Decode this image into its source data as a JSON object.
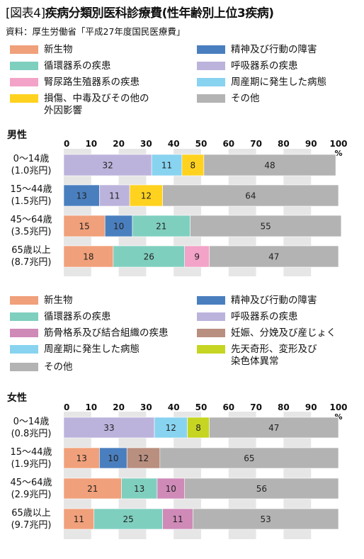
{
  "title_prefix": "[図表4]",
  "title": "疾病分類別医科診療費(性年齢別上位3疾病)",
  "source": "資料：厚生労働省「平成27年度国民医療費」",
  "colors": {
    "neoplasm": "#f0a07a",
    "mental": "#4a7fbf",
    "circulatory": "#7fcfbf",
    "respiratory": "#bcb3dc",
    "genitourinary": "#f3a3c8",
    "perinatal": "#88d3f0",
    "injury": "#ffd21f",
    "other": "#b3b3b3",
    "musculoskeletal": "#cf8ab8",
    "pregnancy": "#b98f80",
    "congenital": "#c5d522",
    "band": "#e6e6e6"
  },
  "legend_male": [
    {
      "label": "新生物",
      "color_key": "neoplasm"
    },
    {
      "label": "精神及び行動の障害",
      "color_key": "mental"
    },
    {
      "label": "循環器系の疾患",
      "color_key": "circulatory"
    },
    {
      "label": "呼吸器系の疾患",
      "color_key": "respiratory"
    },
    {
      "label": "腎尿路生殖器系の疾患",
      "color_key": "genitourinary"
    },
    {
      "label": "周産期に発生した病態",
      "color_key": "perinatal"
    },
    {
      "label": "損傷、中毒及びその他の\n外因影響",
      "color_key": "injury"
    },
    {
      "label": "その他",
      "color_key": "other"
    }
  ],
  "legend_female": [
    {
      "label": "新生物",
      "color_key": "neoplasm"
    },
    {
      "label": "精神及び行動の障害",
      "color_key": "mental"
    },
    {
      "label": "循環器系の疾患",
      "color_key": "circulatory"
    },
    {
      "label": "呼吸器系の疾患",
      "color_key": "respiratory"
    },
    {
      "label": "筋骨格系及び結合組織の疾患",
      "color_key": "musculoskeletal"
    },
    {
      "label": "妊娠、分娩及び産じょく",
      "color_key": "pregnancy"
    },
    {
      "label": "周産期に発生した病態",
      "color_key": "perinatal"
    },
    {
      "label": "先天奇形、変形及び\n染色体異常",
      "color_key": "congenital"
    },
    {
      "label": "その他",
      "color_key": "other"
    }
  ],
  "chart_data": [
    {
      "type": "bar",
      "orientation": "horizontal",
      "stacked": true,
      "title": "男性",
      "x_ticks": [
        "0",
        "10",
        "20",
        "30",
        "40",
        "50",
        "60",
        "70",
        "80",
        "90",
        "100"
      ],
      "unit": "%",
      "xlim": [
        0,
        100
      ],
      "rows": [
        {
          "label": "0〜14歳",
          "sub": "(1.0兆円)",
          "segments": [
            {
              "key": "respiratory",
              "value": 32
            },
            {
              "key": "perinatal",
              "value": 11
            },
            {
              "key": "injury",
              "value": 8
            },
            {
              "key": "other",
              "value": 48
            }
          ]
        },
        {
          "label": "15〜44歳",
          "sub": "(1.5兆円)",
          "segments": [
            {
              "key": "mental",
              "value": 13
            },
            {
              "key": "respiratory",
              "value": 11
            },
            {
              "key": "injury",
              "value": 12
            },
            {
              "key": "other",
              "value": 64
            }
          ]
        },
        {
          "label": "45〜64歳",
          "sub": "(3.5兆円)",
          "segments": [
            {
              "key": "neoplasm",
              "value": 15
            },
            {
              "key": "mental",
              "value": 10
            },
            {
              "key": "circulatory",
              "value": 21
            },
            {
              "key": "other",
              "value": 55
            }
          ]
        },
        {
          "label": "65歳以上",
          "sub": "(8.7兆円)",
          "segments": [
            {
              "key": "neoplasm",
              "value": 18
            },
            {
              "key": "circulatory",
              "value": 26
            },
            {
              "key": "genitourinary",
              "value": 9
            },
            {
              "key": "other",
              "value": 47
            }
          ]
        }
      ]
    },
    {
      "type": "bar",
      "orientation": "horizontal",
      "stacked": true,
      "title": "女性",
      "x_ticks": [
        "0",
        "10",
        "20",
        "30",
        "40",
        "50",
        "60",
        "70",
        "80",
        "90",
        "100"
      ],
      "unit": "%",
      "xlim": [
        0,
        100
      ],
      "rows": [
        {
          "label": "0〜14歳",
          "sub": "(0.8兆円)",
          "segments": [
            {
              "key": "respiratory",
              "value": 33
            },
            {
              "key": "perinatal",
              "value": 12
            },
            {
              "key": "congenital",
              "value": 8
            },
            {
              "key": "other",
              "value": 47
            }
          ]
        },
        {
          "label": "15〜44歳",
          "sub": "(1.9兆円)",
          "segments": [
            {
              "key": "neoplasm",
              "value": 13
            },
            {
              "key": "mental",
              "value": 10
            },
            {
              "key": "pregnancy",
              "value": 12
            },
            {
              "key": "other",
              "value": 65
            }
          ]
        },
        {
          "label": "45〜64歳",
          "sub": "(2.9兆円)",
          "segments": [
            {
              "key": "neoplasm",
              "value": 21
            },
            {
              "key": "circulatory",
              "value": 13
            },
            {
              "key": "musculoskeletal",
              "value": 10
            },
            {
              "key": "other",
              "value": 56
            }
          ]
        },
        {
          "label": "65歳以上",
          "sub": "(9.7兆円)",
          "segments": [
            {
              "key": "neoplasm",
              "value": 11
            },
            {
              "key": "circulatory",
              "value": 25
            },
            {
              "key": "musculoskeletal",
              "value": 11
            },
            {
              "key": "other",
              "value": 53
            }
          ]
        }
      ]
    }
  ]
}
